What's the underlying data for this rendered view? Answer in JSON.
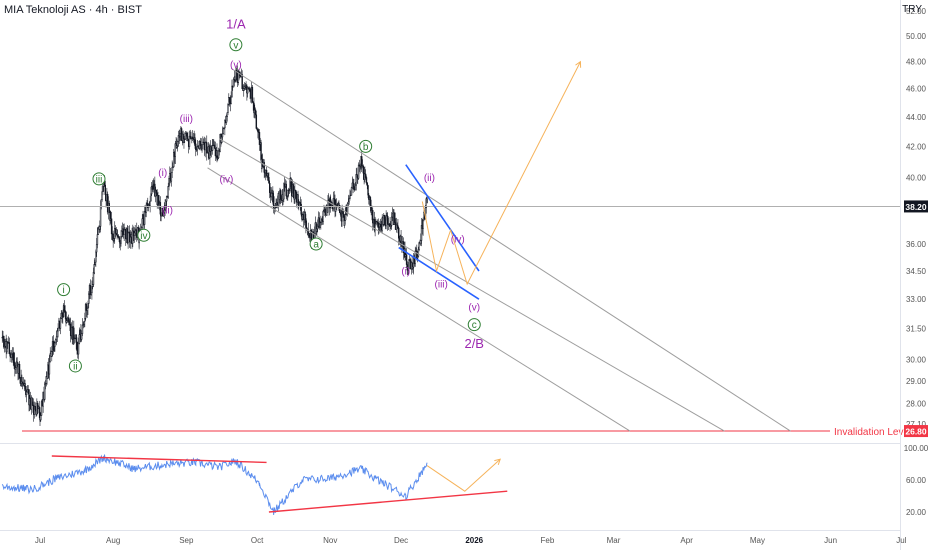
{
  "header": {
    "title": "MIA Teknoloji AS · 4h · BIST",
    "currency": "TRY"
  },
  "colors": {
    "candle": "#131722",
    "channel": "#9e9e9e",
    "wedge": "#2962ff",
    "projection": "#f6b35b",
    "invalidation": "#f23645",
    "rsi": "#5b8dee",
    "rsi_trend": "#f23645",
    "wave_purple": "#9c27b0",
    "wave_green": "#2e7d32",
    "price_line": "#b0b0b0",
    "axis_text": "#555555"
  },
  "chart_data": [
    {
      "type": "candlestick",
      "title": "MIA Teknoloji AS · 4h · BIST",
      "grid": false,
      "ylim": [
        26.3,
        53.5
      ],
      "y_ticks": [
        "27.10",
        "28.00",
        "29.00",
        "30.00",
        "31.50",
        "33.00",
        "34.50",
        "36.00",
        "38.20",
        "40.00",
        "42.00",
        "44.00",
        "46.00",
        "48.00",
        "50.00",
        "52.00"
      ],
      "x_ticks": [
        "Jul",
        "Aug",
        "Sep",
        "Oct",
        "Nov",
        "Dec",
        "2026",
        "Feb",
        "Mar",
        "Apr",
        "May",
        "Jun",
        "Jul"
      ],
      "last_price": "38.20",
      "invalidation": {
        "label": "Invalidation Level",
        "value": "26.80"
      },
      "price_path_approx": [
        {
          "date": "2025-06-15",
          "close": 31.0
        },
        {
          "date": "2025-06-20",
          "close": 30.0
        },
        {
          "date": "2025-06-27",
          "close": 28.0
        },
        {
          "date": "2025-07-01",
          "close": 27.5
        },
        {
          "date": "2025-07-07",
          "close": 31.0
        },
        {
          "date": "2025-07-11",
          "close": 32.5
        },
        {
          "date": "2025-07-17",
          "close": 30.5
        },
        {
          "date": "2025-07-24",
          "close": 34.5
        },
        {
          "date": "2025-07-28",
          "close": 39.5
        },
        {
          "date": "2025-08-01",
          "close": 36.5
        },
        {
          "date": "2025-08-12",
          "close": 36.5
        },
        {
          "date": "2025-08-18",
          "close": 39.5
        },
        {
          "date": "2025-08-22",
          "close": 37.5
        },
        {
          "date": "2025-08-29",
          "close": 43.0
        },
        {
          "date": "2025-09-05",
          "close": 42.0
        },
        {
          "date": "2025-09-14",
          "close": 41.5
        },
        {
          "date": "2025-09-22",
          "close": 47.0
        },
        {
          "date": "2025-09-29",
          "close": 45.5
        },
        {
          "date": "2025-10-03",
          "close": 41.0
        },
        {
          "date": "2025-10-08",
          "close": 38.5
        },
        {
          "date": "2025-10-15",
          "close": 39.5
        },
        {
          "date": "2025-10-24",
          "close": 36.5
        },
        {
          "date": "2025-11-01",
          "close": 38.5
        },
        {
          "date": "2025-11-07",
          "close": 37.5
        },
        {
          "date": "2025-11-14",
          "close": 41.0
        },
        {
          "date": "2025-11-20",
          "close": 37.0
        },
        {
          "date": "2025-11-28",
          "close": 37.5
        },
        {
          "date": "2025-12-04",
          "close": 34.8
        },
        {
          "date": "2025-12-08",
          "close": 35.5
        },
        {
          "date": "2025-12-12",
          "close": 38.5
        }
      ],
      "channel_lines": [
        {
          "from": [
            "2025-09-20",
            47.5
          ],
          "to": [
            "2026-05-15",
            26.8
          ]
        },
        {
          "from": [
            "2025-09-15",
            42.5
          ],
          "to": [
            "2026-04-17",
            26.8
          ]
        },
        {
          "from": [
            "2025-09-10",
            40.6
          ],
          "to": [
            "2026-03-08",
            26.8
          ]
        }
      ],
      "wedge_lines": [
        {
          "from": [
            "2025-12-03",
            40.8
          ],
          "to": [
            "2026-01-03",
            34.5
          ]
        },
        {
          "from": [
            "2025-11-30",
            35.8
          ],
          "to": [
            "2026-01-03",
            33.0
          ]
        }
      ],
      "projection_path": [
        [
          "2025-12-10",
          38.5
        ],
        [
          "2025-12-16",
          34.5
        ],
        [
          "2025-12-22",
          36.8
        ],
        [
          "2025-12-29",
          33.8
        ],
        [
          "2026-02-15",
          48.0
        ]
      ],
      "wave_labels": [
        {
          "text": "1/A",
          "date": "2025-09-22",
          "value": 51.0,
          "circled": false,
          "color": "purple"
        },
        {
          "text": "v",
          "date": "2025-09-22",
          "value": 49.3,
          "circled": true,
          "color": "green"
        },
        {
          "text": "(v)",
          "date": "2025-09-22",
          "value": 47.8,
          "circled": false,
          "color": "purple"
        },
        {
          "text": "(iii)",
          "date": "2025-09-01",
          "value": 43.9,
          "circled": false,
          "color": "purple"
        },
        {
          "text": "(iv)",
          "date": "2025-09-18",
          "value": 39.9,
          "circled": false,
          "color": "purple"
        },
        {
          "text": "(i)",
          "date": "2025-08-22",
          "value": 40.3,
          "circled": false,
          "color": "purple"
        },
        {
          "text": "(ii)",
          "date": "2025-08-24",
          "value": 38.0,
          "circled": false,
          "color": "purple"
        },
        {
          "text": "iii",
          "date": "2025-07-26",
          "value": 39.9,
          "circled": true,
          "color": "green"
        },
        {
          "text": "iv",
          "date": "2025-08-14",
          "value": 36.5,
          "circled": true,
          "color": "green"
        },
        {
          "text": "i",
          "date": "2025-07-11",
          "value": 33.5,
          "circled": true,
          "color": "green"
        },
        {
          "text": "ii",
          "date": "2025-07-16",
          "value": 29.7,
          "circled": true,
          "color": "green"
        },
        {
          "text": "a",
          "date": "2025-10-26",
          "value": 36.0,
          "circled": true,
          "color": "green"
        },
        {
          "text": "b",
          "date": "2025-11-16",
          "value": 42.0,
          "circled": true,
          "color": "green"
        },
        {
          "text": "(ii)",
          "date": "2025-12-13",
          "value": 40.0,
          "circled": false,
          "color": "purple"
        },
        {
          "text": "(i)",
          "date": "2025-12-03",
          "value": 34.5,
          "circled": false,
          "color": "purple"
        },
        {
          "text": "(iii)",
          "date": "2025-12-18",
          "value": 33.8,
          "circled": false,
          "color": "purple"
        },
        {
          "text": "(iv)",
          "date": "2025-12-25",
          "value": 36.3,
          "circled": false,
          "color": "purple"
        },
        {
          "text": "(v)",
          "date": "2026-01-01",
          "value": 32.6,
          "circled": false,
          "color": "purple"
        },
        {
          "text": "c",
          "date": "2026-01-01",
          "value": 31.7,
          "circled": true,
          "color": "green"
        },
        {
          "text": "2/B",
          "date": "2026-01-01",
          "value": 30.8,
          "circled": false,
          "color": "purple"
        }
      ]
    },
    {
      "type": "line",
      "title": "",
      "ylim": [
        0,
        105
      ],
      "y_ticks": [
        "20.00",
        "60.00",
        "100.00"
      ],
      "rsi_path_approx": [
        {
          "date": "2025-06-15",
          "value": 52
        },
        {
          "date": "2025-06-28",
          "value": 48
        },
        {
          "date": "2025-07-08",
          "value": 62
        },
        {
          "date": "2025-07-20",
          "value": 72
        },
        {
          "date": "2025-07-28",
          "value": 88
        },
        {
          "date": "2025-08-10",
          "value": 74
        },
        {
          "date": "2025-08-25",
          "value": 80
        },
        {
          "date": "2025-09-05",
          "value": 82
        },
        {
          "date": "2025-09-15",
          "value": 76
        },
        {
          "date": "2025-09-22",
          "value": 84
        },
        {
          "date": "2025-10-02",
          "value": 56
        },
        {
          "date": "2025-10-08",
          "value": 20
        },
        {
          "date": "2025-10-20",
          "value": 60
        },
        {
          "date": "2025-11-01",
          "value": 62
        },
        {
          "date": "2025-11-14",
          "value": 74
        },
        {
          "date": "2025-11-20",
          "value": 62
        },
        {
          "date": "2025-12-03",
          "value": 40
        },
        {
          "date": "2025-12-12",
          "value": 80
        }
      ],
      "trend_lines": [
        {
          "from": [
            "2025-07-06",
            90
          ],
          "to": [
            "2025-10-05",
            82
          ]
        },
        {
          "from": [
            "2025-10-06",
            20
          ],
          "to": [
            "2026-01-15",
            46
          ]
        }
      ],
      "projection_path": [
        [
          "2025-12-12",
          78
        ],
        [
          "2025-12-28",
          46
        ],
        [
          "2026-01-12",
          86
        ]
      ]
    }
  ]
}
